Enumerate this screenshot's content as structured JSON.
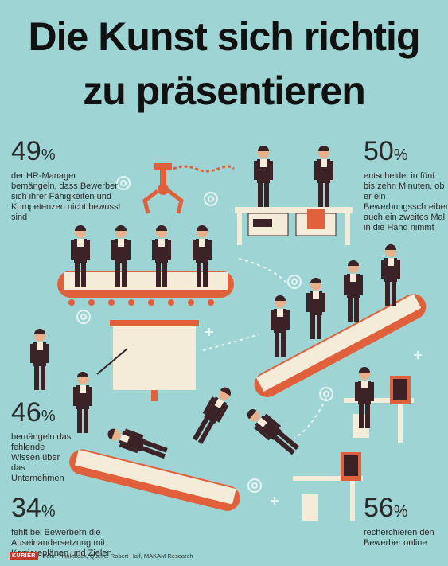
{
  "title": {
    "line1": "Die Kunst sich richtig",
    "line2": "zu präsentieren"
  },
  "stats": [
    {
      "value": "49",
      "unit": "%",
      "text": "der HR-Manager bemängeln, dass Bewerber sich ihrer Fähigkeiten und Kompetenzen nicht bewusst sind"
    },
    {
      "value": "50",
      "unit": "%",
      "text": "entscheidet in fünf bis zehn Minuten, ob er ein Bewerbungsschreiben auch ein zweites Mal in die Hand nimmt"
    },
    {
      "value": "46",
      "unit": "%",
      "text": "bemängeln das fehlende Wissen über das Unternehmen"
    },
    {
      "value": "34",
      "unit": "%",
      "text": "fehlt bei Bewerbern die Auseinandersetzung mit Karriereplänen und Zielen"
    },
    {
      "value": "56",
      "unit": "%",
      "text": "recherchieren den Bewerber online"
    }
  ],
  "footer": {
    "logo": "KURIER",
    "credit": "Foto: Thinkstock, Quelle: Robert Half, MAKAM Research"
  },
  "colors": {
    "background": "#9ed4d3",
    "accent": "#e0603c",
    "suit": "#3a2226",
    "cream": "#f4ecd8"
  }
}
